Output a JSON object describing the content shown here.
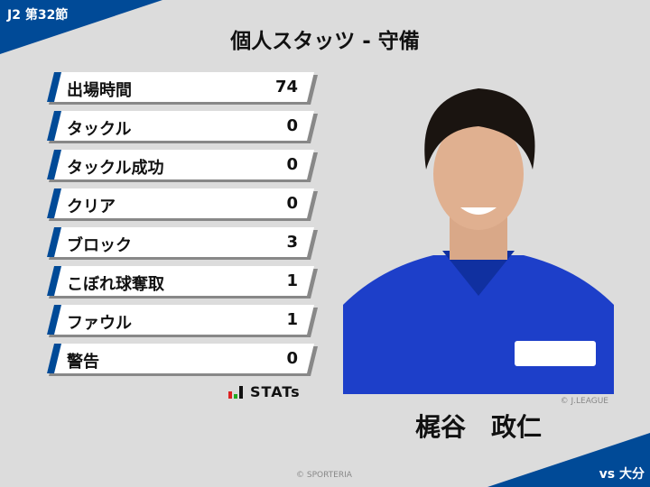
{
  "header": {
    "round": "J2 第32節",
    "title": "個人スタッツ - 守備"
  },
  "stats": [
    {
      "label": "出場時間",
      "value": "74"
    },
    {
      "label": "タックル",
      "value": "0"
    },
    {
      "label": "タックル成功",
      "value": "0"
    },
    {
      "label": "クリア",
      "value": "0"
    },
    {
      "label": "ブロック",
      "value": "3"
    },
    {
      "label": "こぼれ球奪取",
      "value": "1"
    },
    {
      "label": "ファウル",
      "value": "1"
    },
    {
      "label": "警告",
      "value": "0"
    }
  ],
  "provider": "STATs",
  "player": {
    "name": "梶谷　政仁",
    "photo_credit": "© J.LEAGUE"
  },
  "footer": {
    "copyright": "© SPORTERIA",
    "opponent": "vs 大分"
  },
  "colors": {
    "accent": "#004a97",
    "background": "#dcdcdc"
  }
}
